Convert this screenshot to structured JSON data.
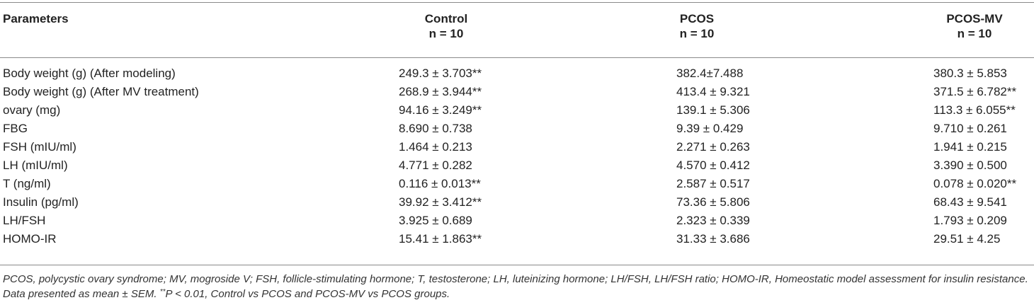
{
  "header": {
    "parameters": "Parameters",
    "groups": [
      {
        "name": "Control",
        "n": "n = 10"
      },
      {
        "name": "PCOS",
        "n": "n = 10"
      },
      {
        "name": "PCOS-MV",
        "n": "n = 10"
      }
    ]
  },
  "rows": [
    {
      "label": "Body weight (g) (After modeling)",
      "control": "249.3 ± 3.703**",
      "pcos": "382.4±7.488",
      "pcos_mv": "380.3 ± 5.853"
    },
    {
      "label": "Body weight (g) (After MV treatment)",
      "control": "268.9 ± 3.944**",
      "pcos": "413.4 ± 9.321",
      "pcos_mv": "371.5 ± 6.782**"
    },
    {
      "label": "ovary (mg)",
      "control": "94.16 ± 3.249**",
      "pcos": "139.1 ± 5.306",
      "pcos_mv": "113.3 ± 6.055**"
    },
    {
      "label": "FBG",
      "control": "8.690 ± 0.738",
      "pcos": "9.39 ± 0.429",
      "pcos_mv": "9.710 ± 0.261"
    },
    {
      "label": "FSH (mIU/ml)",
      "control": "1.464 ± 0.213",
      "pcos": "2.271 ± 0.263",
      "pcos_mv": "1.941 ± 0.215"
    },
    {
      "label": "LH (mIU/ml)",
      "control": "4.771 ± 0.282",
      "pcos": "4.570 ± 0.412",
      "pcos_mv": "3.390 ± 0.500"
    },
    {
      "label": "T (ng/ml)",
      "control": "0.116 ± 0.013**",
      "pcos": "2.587 ± 0.517",
      "pcos_mv": "0.078 ± 0.020**"
    },
    {
      "label": "Insulin (pg/ml)",
      "control": "39.92 ± 3.412**",
      "pcos": "73.36 ± 5.806",
      "pcos_mv": "68.43 ± 9.541"
    },
    {
      "label": "LH/FSH",
      "control": "3.925 ± 0.689",
      "pcos": "2.323 ± 0.339",
      "pcos_mv": "1.793 ± 0.209"
    },
    {
      "label": "HOMO-IR",
      "control": "15.41 ± 1.863**",
      "pcos": "31.33 ± 3.686",
      "pcos_mv": "29.51 ± 4.25"
    }
  ],
  "footnote": {
    "text": "PCOS, polycystic ovary syndrome; MV, mogroside V; FSH, follicle-stimulating hormone; T, testosterone; LH, luteinizing hormone; LH/FSH, LH/FSH ratio; HOMO-IR, Homeostatic model assessment for insulin resistance. Data presented as mean ± SEM.",
    "sig_mark": "**",
    "sig_text": "P < 0.01, Control vs PCOS and PCOS-MV vs PCOS groups."
  }
}
